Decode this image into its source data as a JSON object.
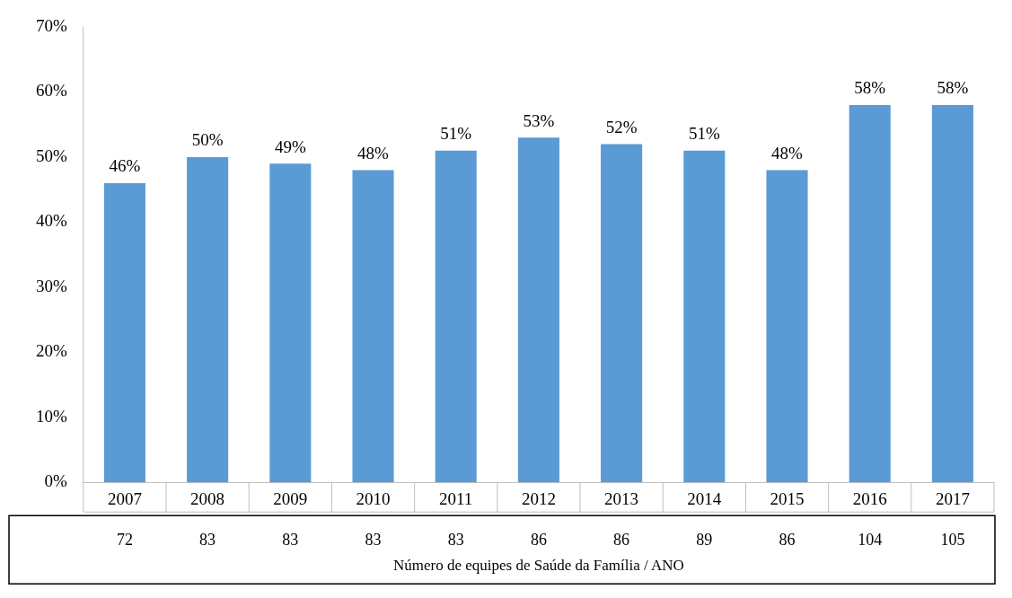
{
  "chart_data": {
    "type": "bar",
    "categories": [
      "2007",
      "2008",
      "2009",
      "2010",
      "2011",
      "2012",
      "2013",
      "2014",
      "2015",
      "2016",
      "2017"
    ],
    "values": [
      46,
      50,
      49,
      48,
      51,
      53,
      52,
      51,
      48,
      58,
      58
    ],
    "value_labels": [
      "46%",
      "50%",
      "49%",
      "48%",
      "51%",
      "53%",
      "52%",
      "51%",
      "48%",
      "58%",
      "58%"
    ],
    "color": "#5b9bd5",
    "ylim": [
      0,
      70
    ],
    "yticks": [
      {
        "value": 0,
        "label": "0%"
      },
      {
        "value": 10,
        "label": "10%"
      },
      {
        "value": 20,
        "label": "20%"
      },
      {
        "value": 30,
        "label": "30%"
      },
      {
        "value": 40,
        "label": "40%"
      },
      {
        "value": 50,
        "label": "50%"
      },
      {
        "value": 60,
        "label": "60%"
      },
      {
        "value": 70,
        "label": "70%"
      }
    ],
    "grid": false,
    "legend": false,
    "xlabel": "Número de equipes de Saúde da Família / ANO",
    "annotations": [
      "72",
      "83",
      "83",
      "83",
      "83",
      "86",
      "86",
      "89",
      "86",
      "104",
      "105"
    ]
  }
}
